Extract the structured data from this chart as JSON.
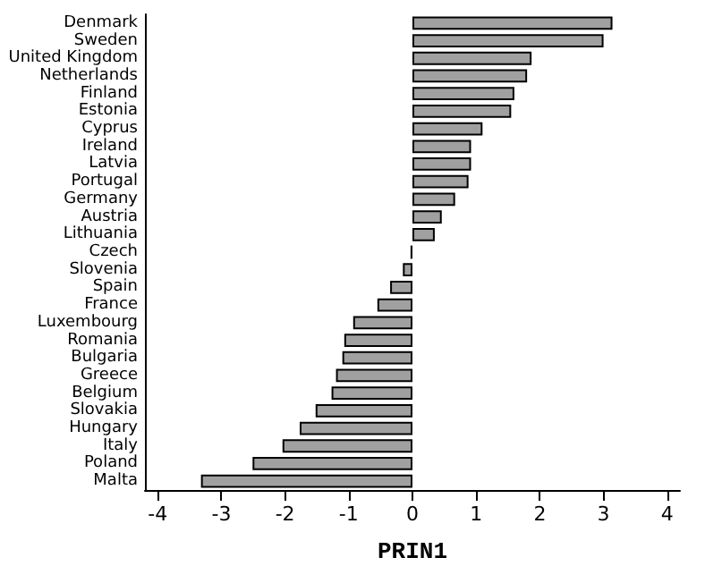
{
  "chart_data": {
    "type": "bar",
    "orientation": "horizontal",
    "xlabel": "PRIN1",
    "categories": [
      "Denmark",
      "Sweden",
      "United Kingdom",
      "Netherlands",
      "Finland",
      "Estonia",
      "Cyprus",
      "Ireland",
      "Latvia",
      "Portugal",
      "Germany",
      "Austria",
      "Lithuania",
      "Czech",
      "Slovenia",
      "Spain",
      "France",
      "Luxembourg",
      "Romania",
      "Bulgaria",
      "Greece",
      "Belgium",
      "Slovakia",
      "Hungary",
      "Italy",
      "Poland",
      "Malta"
    ],
    "values": [
      3.14,
      3.0,
      1.87,
      1.8,
      1.6,
      1.55,
      1.1,
      0.92,
      0.92,
      0.88,
      0.67,
      0.46,
      0.35,
      -0.03,
      -0.15,
      -0.35,
      -0.55,
      -0.93,
      -1.07,
      -1.1,
      -1.2,
      -1.27,
      -1.52,
      -1.77,
      -2.04,
      -2.51,
      -3.32
    ],
    "color": "#a0a0a0",
    "xlim": [
      -4.2,
      4.2
    ],
    "xticks": [
      -4,
      -3,
      -2,
      -1,
      0,
      1,
      2,
      3,
      4
    ],
    "grid": false
  }
}
